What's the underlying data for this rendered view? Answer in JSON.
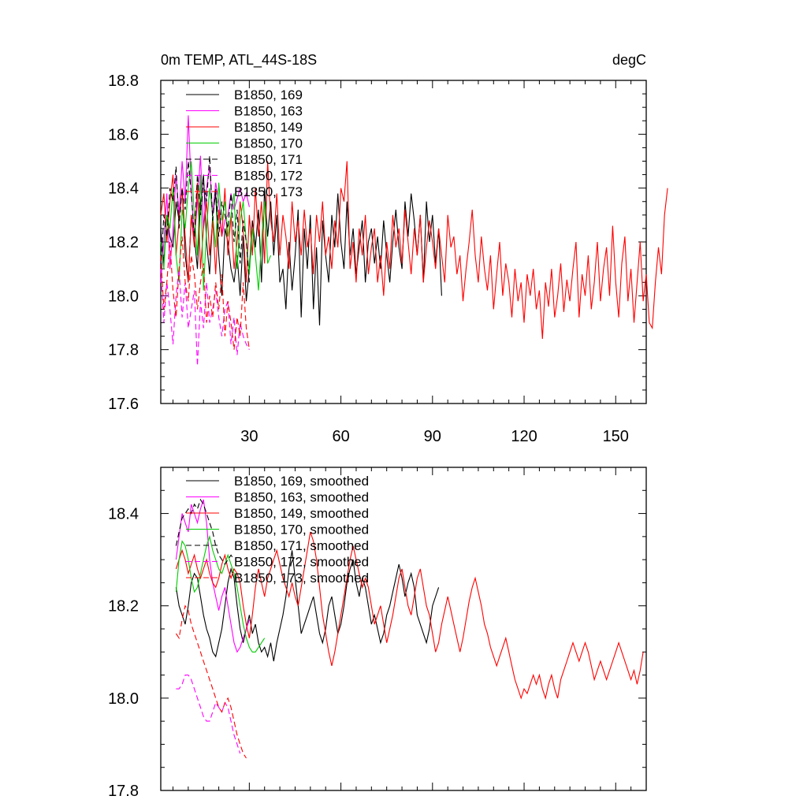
{
  "chart_data": [
    {
      "type": "line",
      "title_left": "0m TEMP, ATL_44S-18S",
      "title_right": "degC",
      "xlabel": "",
      "ylabel": "",
      "xlim": [
        1,
        160
      ],
      "ylim": [
        17.6,
        18.8
      ],
      "xticks": [
        30,
        60,
        90,
        120,
        150
      ],
      "xtick_labels": [
        "30",
        "60",
        "90",
        "120",
        "150"
      ],
      "yticks": [
        17.6,
        17.8,
        18.0,
        18.2,
        18.4,
        18.6,
        18.8
      ],
      "ytick_labels": [
        "17.6",
        "17.8",
        "18.0",
        "18.2",
        "18.4",
        "18.6",
        "18.8"
      ],
      "legend_position": "top-left",
      "series": [
        {
          "name": "B1850, 169",
          "color": "#000000",
          "dash": "solid",
          "x_start": 1,
          "values": [
            18.25,
            18.12,
            18.3,
            18.22,
            18.18,
            18.35,
            18.28,
            18.4,
            18.15,
            18.05,
            18.3,
            18.22,
            18.1,
            18.35,
            18.45,
            18.2,
            18.08,
            18.3,
            18.38,
            18.15,
            18.0,
            18.25,
            18.2,
            18.1,
            18.05,
            18.15,
            18.0,
            18.22,
            17.98,
            18.1,
            18.28,
            18.18,
            18.32,
            18.05,
            18.4,
            18.22,
            18.35,
            18.15,
            18.3,
            18.05,
            18.1,
            17.95,
            18.2,
            18.02,
            18.15,
            18.32,
            17.92,
            18.25,
            18.1,
            18.3,
            17.95,
            18.18,
            17.89,
            18.28,
            18.15,
            18.05,
            18.3,
            18.18,
            18.38,
            18.2,
            18.1,
            18.35,
            18.15,
            18.25,
            18.08,
            18.18,
            18.28,
            18.05,
            18.2,
            18.25,
            18.12,
            18.22,
            18.1,
            18.28,
            18.15,
            18.05,
            18.2,
            18.32,
            18.18,
            18.1,
            18.35,
            18.22,
            18.38,
            18.28,
            18.15,
            18.3,
            18.05,
            18.35,
            18.2,
            18.3,
            18.12,
            18.25,
            18.0
          ]
        },
        {
          "name": "B1850, 163",
          "color": "#ff00ff",
          "dash": "solid",
          "x_start": 1,
          "values": [
            18.05,
            18.2,
            18.38,
            18.1,
            18.25,
            18.45,
            18.3,
            18.5,
            18.35,
            18.67,
            18.4,
            18.2,
            18.35,
            18.52,
            18.25,
            18.4,
            18.48,
            18.3,
            18.42,
            18.35,
            18.22,
            18.28,
            18.3,
            18.38,
            18.32,
            18.36,
            18.4,
            18.35,
            18.38,
            18.33
          ]
        },
        {
          "name": "B1850, 149",
          "color": "#ff0000",
          "dash": "solid",
          "x_start": 1,
          "values": [
            18.3,
            18.38,
            18.2,
            18.35,
            18.45,
            18.15,
            18.28,
            18.4,
            18.22,
            18.05,
            18.3,
            18.18,
            18.42,
            18.1,
            18.25,
            18.35,
            18.15,
            18.28,
            18.08,
            18.32,
            18.22,
            18.4,
            18.15,
            18.3,
            18.1,
            18.2,
            18.35,
            18.25,
            18.05,
            18.3,
            18.15,
            18.4,
            18.22,
            18.35,
            18.12,
            18.5,
            18.28,
            18.2,
            18.38,
            18.15,
            18.3,
            18.22,
            18.1,
            18.35,
            18.2,
            18.28,
            18.15,
            18.32,
            18.18,
            18.25,
            18.08,
            18.3,
            18.2,
            18.35,
            18.15,
            18.22,
            18.1,
            18.28,
            18.18,
            18.4,
            18.35,
            18.5,
            18.1,
            18.2,
            18.05,
            18.25,
            18.15,
            18.3,
            18.08,
            18.18,
            18.25,
            18.05,
            18.15,
            18.0,
            18.2,
            18.1,
            18.3,
            18.18,
            18.25,
            18.12,
            18.32,
            18.2,
            18.08,
            18.25,
            18.15,
            18.3,
            18.05,
            18.18,
            18.28,
            18.2,
            18.1,
            18.25,
            18.15,
            18.05,
            18.3,
            18.18,
            18.22,
            18.08,
            18.15,
            17.98,
            18.1,
            18.2,
            18.32,
            18.15,
            18.05,
            18.22,
            18.1,
            18.02,
            18.15,
            17.95,
            18.08,
            18.2,
            18.0,
            18.12,
            18.05,
            17.92,
            18.1,
            17.98,
            18.05,
            17.9,
            18.08,
            18.0,
            18.1,
            17.95,
            18.02,
            17.84,
            18.05,
            17.96,
            18.1,
            17.92,
            18.0,
            18.12,
            17.94,
            18.06,
            17.98,
            18.1,
            18.2,
            17.92,
            18.08,
            18.0,
            18.15,
            17.95,
            18.05,
            18.2,
            17.98,
            18.1,
            18.18,
            18.0,
            18.26,
            18.05,
            17.92,
            18.12,
            18.22,
            17.98,
            18.1,
            17.9,
            18.05,
            18.2,
            17.98,
            18.08,
            17.9,
            17.88,
            18.05,
            18.18,
            18.08,
            18.3,
            18.4
          ]
        },
        {
          "name": "B1850, 170",
          "color": "#00cc00",
          "dash": "solid",
          "x_start": 1,
          "values": [
            18.2,
            18.1,
            18.3,
            18.25,
            18.4,
            18.15,
            18.05,
            18.32,
            18.25,
            18.4,
            18.5,
            18.3,
            18.15,
            18.45,
            18.02,
            18.25,
            18.4,
            18.3,
            18.18,
            18.42,
            18.28,
            18.35,
            18.22,
            18.3,
            18.38,
            18.1,
            18.28,
            18.35,
            18.2,
            18.08,
            18.25,
            18.15,
            18.02,
            18.2,
            18.35,
            18.12,
            18.15
          ]
        },
        {
          "name": "B1850, 171",
          "color": "#000000",
          "dash": "dashed",
          "x_start": 1,
          "values": [
            18.1,
            18.3,
            18.22,
            18.4,
            18.35,
            18.48,
            18.25,
            18.4,
            18.32,
            18.5,
            18.38,
            18.22,
            18.45,
            18.3,
            18.42,
            18.35,
            18.52,
            18.28,
            18.4,
            18.22,
            18.35,
            18.3,
            18.25,
            18.38,
            18.2,
            18.32,
            18.12,
            18.28,
            18.2,
            18.05
          ]
        },
        {
          "name": "B1850, 172",
          "color": "#ff00ff",
          "dash": "dashed",
          "x_start": 1,
          "values": [
            18.1,
            17.9,
            18.05,
            17.95,
            17.82,
            18.0,
            18.1,
            17.92,
            18.05,
            17.88,
            17.95,
            18.02,
            17.74,
            17.98,
            17.88,
            18.05,
            17.9,
            17.95,
            18.02,
            17.92,
            17.85,
            17.95,
            17.98,
            17.82,
            17.92,
            17.78,
            17.9,
            17.85,
            17.82,
            17.8
          ]
        },
        {
          "name": "B1850, 173",
          "color": "#ff0000",
          "dash": "dashed",
          "x_start": 1,
          "values": [
            18.15,
            17.95,
            18.05,
            18.2,
            18.02,
            17.92,
            18.1,
            18.22,
            18.05,
            17.98,
            18.15,
            18.08,
            17.95,
            18.05,
            18.12,
            17.9,
            18.0,
            17.92,
            18.05,
            17.95,
            18.08,
            17.85,
            17.98,
            17.9,
            17.8,
            17.92,
            17.85,
            18.05,
            17.88,
            17.8
          ]
        }
      ]
    },
    {
      "type": "line",
      "xlabel": "",
      "ylabel": "",
      "xlim": [
        1,
        160
      ],
      "ylim": [
        17.8,
        18.5
      ],
      "xticks": [
        30,
        60,
        90,
        120,
        150
      ],
      "yticks": [
        17.8,
        18.0,
        18.2,
        18.4
      ],
      "ytick_labels": [
        "17.8",
        "18.0",
        "18.2",
        "18.4"
      ],
      "legend_position": "top-left",
      "series": [
        {
          "name": "B1850, 169, smoothed",
          "color": "#000000",
          "dash": "solid",
          "x_start": 6,
          "values": [
            18.24,
            18.2,
            18.18,
            18.16,
            18.2,
            18.25,
            18.27,
            18.26,
            18.22,
            18.18,
            18.15,
            18.13,
            18.1,
            18.09,
            18.12,
            18.15,
            18.2,
            18.25,
            18.28,
            18.26,
            18.2,
            18.15,
            18.12,
            18.15,
            18.18,
            18.14,
            18.16,
            18.12,
            18.1,
            18.11,
            18.09,
            18.12,
            18.08,
            18.12,
            18.15,
            18.18,
            18.22,
            18.28,
            18.32,
            18.26,
            18.2,
            18.14,
            18.16,
            18.18,
            18.2,
            18.22,
            18.18,
            18.14,
            18.12,
            18.15,
            18.2,
            18.22,
            18.18,
            18.14,
            18.16,
            18.2,
            18.25,
            18.28,
            18.3,
            18.25,
            18.22,
            18.26,
            18.24,
            18.2,
            18.16,
            18.18,
            18.15,
            18.12,
            18.14,
            18.18,
            18.2,
            18.23,
            18.26,
            18.29,
            18.26,
            18.22,
            18.25,
            18.27,
            18.24,
            18.18,
            18.16,
            18.14,
            18.12,
            18.15,
            18.2,
            18.22,
            18.24
          ]
        },
        {
          "name": "B1850, 163, smoothed",
          "color": "#ff00ff",
          "dash": "solid",
          "x_start": 6,
          "values": [
            18.3,
            18.35,
            18.4,
            18.38,
            18.36,
            18.42,
            18.4,
            18.38,
            18.41,
            18.43,
            18.38,
            18.3,
            18.25,
            18.22,
            18.19,
            18.22,
            18.24,
            18.2,
            18.16,
            18.12,
            18.1,
            18.11,
            18.13,
            18.15,
            18.17
          ]
        },
        {
          "name": "B1850, 149, smoothed",
          "color": "#ff0000",
          "dash": "solid",
          "x_start": 6,
          "values": [
            18.28,
            18.3,
            18.32,
            18.3,
            18.27,
            18.29,
            18.31,
            18.28,
            18.26,
            18.28,
            18.3,
            18.27,
            18.25,
            18.24,
            18.26,
            18.29,
            18.31,
            18.28,
            18.26,
            18.28,
            18.27,
            18.25,
            18.2,
            18.16,
            18.13,
            18.18,
            18.24,
            18.28,
            18.25,
            18.22,
            18.26,
            18.28,
            18.3,
            18.32,
            18.29,
            18.26,
            18.24,
            18.22,
            18.25,
            18.22,
            18.2,
            18.24,
            18.28,
            18.32,
            18.36,
            18.34,
            18.3,
            18.24,
            18.18,
            18.14,
            18.1,
            18.07,
            18.1,
            18.14,
            18.18,
            18.22,
            18.26,
            18.3,
            18.33,
            18.3,
            18.27,
            18.24,
            18.26,
            18.24,
            18.2,
            18.16,
            18.18,
            18.2,
            18.16,
            18.12,
            18.15,
            18.18,
            18.22,
            18.26,
            18.28,
            18.24,
            18.2,
            18.18,
            18.22,
            18.26,
            18.28,
            18.24,
            18.2,
            18.18,
            18.14,
            18.1,
            18.12,
            18.16,
            18.19,
            18.22,
            18.19,
            18.16,
            18.13,
            18.1,
            18.13,
            18.17,
            18.21,
            18.24,
            18.26,
            18.23,
            18.2,
            18.16,
            18.14,
            18.11,
            18.09,
            18.07,
            18.09,
            18.11,
            18.13,
            18.1,
            18.07,
            18.04,
            18.02,
            18.0,
            18.02,
            18.01,
            18.03,
            18.05,
            18.03,
            18.05,
            18.02,
            18.0,
            18.03,
            18.05,
            18.02,
            18.0,
            18.04,
            18.06,
            18.08,
            18.1,
            18.12,
            18.1,
            18.08,
            18.1,
            18.12,
            18.1,
            18.07,
            18.04,
            18.06,
            18.08,
            18.06,
            18.04,
            18.06,
            18.08,
            18.1,
            18.12,
            18.1,
            18.08,
            18.06,
            18.04,
            18.06,
            18.03,
            18.06,
            18.1
          ]
        },
        {
          "name": "B1850, 170, smoothed",
          "color": "#00cc00",
          "dash": "solid",
          "x_start": 6,
          "values": [
            18.23,
            18.3,
            18.34,
            18.33,
            18.3,
            18.26,
            18.23,
            18.24,
            18.27,
            18.3,
            18.33,
            18.35,
            18.32,
            18.3,
            18.28,
            18.27,
            18.29,
            18.31,
            18.29,
            18.27,
            18.24,
            18.2,
            18.16,
            18.13,
            18.11,
            18.1,
            18.1,
            18.11,
            18.12,
            18.13
          ]
        },
        {
          "name": "B1850, 171, smoothed",
          "color": "#000000",
          "dash": "dashed",
          "x_start": 6,
          "values": [
            18.33,
            18.36,
            18.39,
            18.4,
            18.41,
            18.4,
            18.42,
            18.41,
            18.43,
            18.42,
            18.4,
            18.38,
            18.36,
            18.33,
            18.31,
            18.3,
            18.29,
            18.3,
            18.31,
            18.3
          ]
        },
        {
          "name": "B1850, 172, smoothed",
          "color": "#ff00ff",
          "dash": "dashed",
          "x_start": 6,
          "values": [
            18.02,
            18.02,
            18.03,
            18.05,
            18.05,
            18.04,
            18.02,
            18.0,
            17.98,
            17.96,
            17.95,
            17.95,
            17.97,
            17.99,
            17.98,
            17.97,
            17.99,
            17.98,
            17.95,
            17.92,
            17.9,
            17.88
          ]
        },
        {
          "name": "B1850, 173, smoothed",
          "color": "#ff0000",
          "dash": "dashed",
          "x_start": 6,
          "values": [
            18.14,
            18.13,
            18.17,
            18.2,
            18.19,
            18.16,
            18.14,
            18.12,
            18.1,
            18.08,
            18.06,
            18.04,
            18.02,
            18.0,
            17.98,
            17.97,
            17.99,
            18.0,
            17.98,
            17.95,
            17.92,
            17.9,
            17.88,
            17.87
          ]
        }
      ]
    }
  ]
}
